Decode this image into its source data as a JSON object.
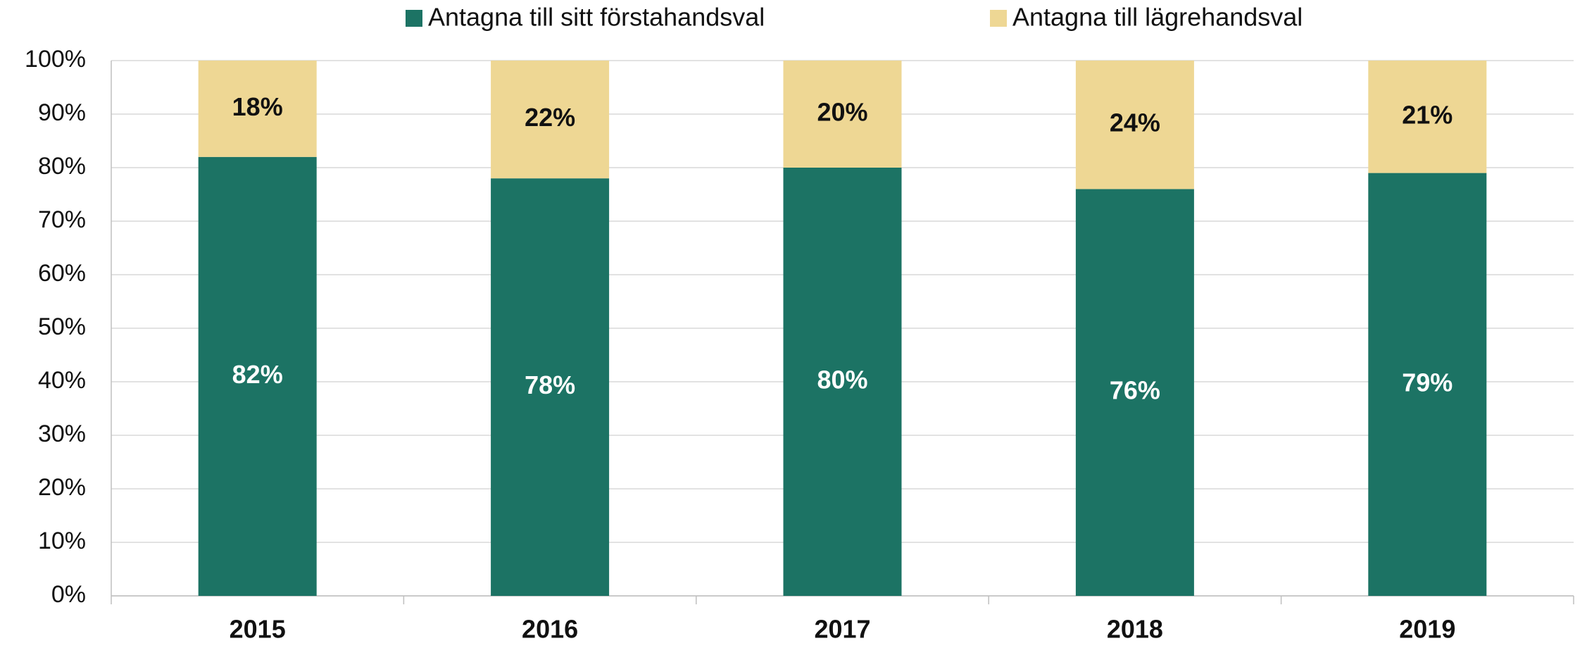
{
  "chart_data": {
    "type": "stacked_bar",
    "categories": [
      "2015",
      "2016",
      "2017",
      "2018",
      "2019"
    ],
    "series": [
      {
        "name": "Antagna till sitt förstahandsval",
        "color": "#1c7364",
        "values": [
          82,
          78,
          80,
          76,
          79
        ],
        "value_labels": [
          "82%",
          "78%",
          "80%",
          "76%",
          "79%"
        ]
      },
      {
        "name": "Antagna till lägrehandsval",
        "color": "#eed794",
        "values": [
          18,
          22,
          20,
          24,
          21
        ],
        "value_labels": [
          "18%",
          "22%",
          "20%",
          "24%",
          "21%"
        ]
      }
    ],
    "ylim": [
      0,
      100
    ],
    "yticks": [
      {
        "value": 0,
        "label": "0%"
      },
      {
        "value": 10,
        "label": "10%"
      },
      {
        "value": 20,
        "label": "20%"
      },
      {
        "value": 30,
        "label": "30%"
      },
      {
        "value": 40,
        "label": "40%"
      },
      {
        "value": 50,
        "label": "50%"
      },
      {
        "value": 60,
        "label": "60%"
      },
      {
        "value": 70,
        "label": "70%"
      },
      {
        "value": 80,
        "label": "80%"
      },
      {
        "value": 90,
        "label": "90%"
      },
      {
        "value": 100,
        "label": "100%"
      }
    ],
    "grid": true,
    "legend": "top"
  }
}
